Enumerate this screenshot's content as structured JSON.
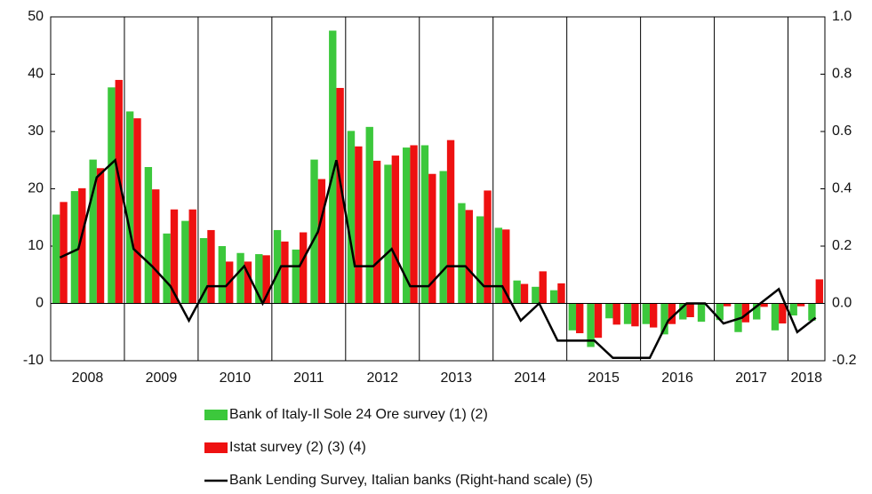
{
  "chart_data": {
    "type": "bar_line",
    "year_labels": [
      "2008",
      "2009",
      "2010",
      "2011",
      "2012",
      "2013",
      "2014",
      "2015",
      "2016",
      "2017",
      "2018"
    ],
    "quarters_per_year": 4,
    "series": [
      {
        "name": "Bank of Italy-Il Sole 24 Ore survey (1) (2)",
        "color": "#3cc83c",
        "type": "bar",
        "values": [
          15.5,
          19.6,
          25.1,
          37.7,
          33.5,
          23.8,
          12.2,
          14.4,
          11.4,
          10.0,
          8.8,
          8.6,
          12.8,
          9.4,
          25.1,
          47.6,
          30.1,
          30.8,
          24.2,
          27.2,
          27.6,
          23.1,
          17.5,
          15.2,
          13.2,
          4.0,
          2.9,
          2.3,
          -4.7,
          -7.6,
          -2.6,
          -3.6,
          -3.6,
          -5.4,
          -2.8,
          -3.2,
          -2.9,
          -5.0,
          -2.8,
          -4.7,
          -2.1,
          -3.0
        ]
      },
      {
        "name": "Istat survey (2) (3) (4)",
        "color": "#ee1111",
        "type": "bar",
        "values": [
          17.7,
          20.1,
          23.6,
          39.0,
          32.3,
          19.9,
          16.4,
          16.4,
          12.8,
          7.3,
          7.3,
          8.4,
          10.8,
          12.4,
          21.7,
          37.6,
          27.4,
          24.9,
          25.8,
          27.6,
          22.6,
          28.5,
          16.3,
          19.7,
          12.9,
          3.4,
          5.6,
          3.5,
          -5.2,
          -6.0,
          -3.7,
          -4.0,
          -4.2,
          -3.6,
          -2.4,
          null,
          -0.5,
          -3.3,
          -0.6,
          -3.5,
          -0.5,
          4.2
        ]
      },
      {
        "name": "Bank Lending Survey, Italian banks (Right-hand scale) (5)",
        "color": "#000000",
        "type": "line",
        "axis": "y2",
        "values": [
          0.16,
          0.19,
          0.44,
          0.5,
          0.19,
          0.13,
          0.06,
          -0.06,
          0.06,
          0.06,
          0.13,
          0.0,
          0.13,
          0.13,
          0.25,
          0.5,
          0.13,
          0.13,
          0.19,
          0.06,
          0.06,
          0.13,
          0.13,
          0.06,
          0.06,
          -0.06,
          0.0,
          -0.13,
          -0.13,
          -0.13,
          -0.19,
          -0.19,
          -0.19,
          -0.06,
          0.0,
          0.0,
          -0.07,
          -0.05,
          0.0,
          0.05,
          -0.1,
          -0.05
        ]
      }
    ],
    "ylim": [
      -10,
      50
    ],
    "yticks": [
      -10,
      0,
      10,
      20,
      30,
      40,
      50
    ],
    "y2lim": [
      -0.2,
      1.0
    ],
    "y2ticks": [
      -0.2,
      {
        "value": 0,
        "label": "0.0"
      },
      0.2,
      0.4,
      0.6,
      0.8,
      {
        "value": 1,
        "label": "1.0"
      }
    ]
  }
}
